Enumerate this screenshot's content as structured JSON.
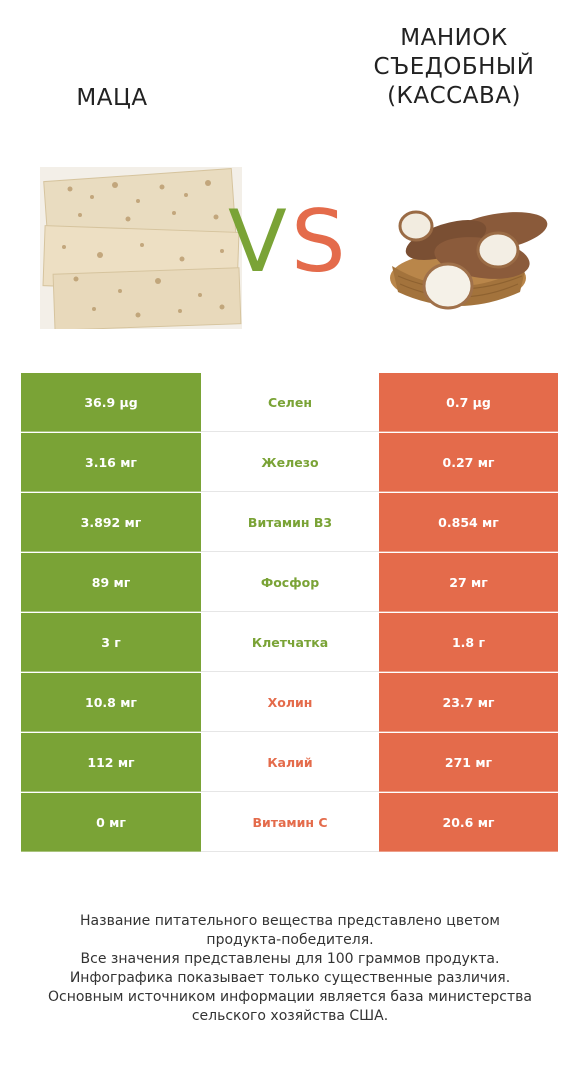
{
  "left_food": {
    "name": "Маца"
  },
  "right_food": {
    "name": "Маниок съедобный (Кассава)"
  },
  "vs": {
    "v": "V",
    "s": "S"
  },
  "colors": {
    "left": "#7aa336",
    "right": "#e46b4b"
  },
  "rows": [
    {
      "left": "36.9 µg",
      "nutrient": "Селен",
      "right": "0.7 µg",
      "winner": "left"
    },
    {
      "left": "3.16 мг",
      "nutrient": "Железо",
      "right": "0.27 мг",
      "winner": "left"
    },
    {
      "left": "3.892 мг",
      "nutrient": "Витамин B3",
      "right": "0.854 мг",
      "winner": "left"
    },
    {
      "left": "89 мг",
      "nutrient": "Фосфор",
      "right": "27 мг",
      "winner": "left"
    },
    {
      "left": "3 г",
      "nutrient": "Клетчатка",
      "right": "1.8 г",
      "winner": "left"
    },
    {
      "left": "10.8 мг",
      "nutrient": "Холин",
      "right": "23.7 мг",
      "winner": "right"
    },
    {
      "left": "112 мг",
      "nutrient": "Калий",
      "right": "271 мг",
      "winner": "right"
    },
    {
      "left": "0 мг",
      "nutrient": "Витамин C",
      "right": "20.6 мг",
      "winner": "right"
    }
  ],
  "footer": {
    "lines": [
      "Название питательного вещества представлено цветом",
      "продукта-победителя.",
      "Все значения представлены для 100 граммов продукта.",
      "Инфографика показывает только существенные различия.",
      "Основным источником информации является база министерства",
      "сельского хозяйства США."
    ]
  }
}
